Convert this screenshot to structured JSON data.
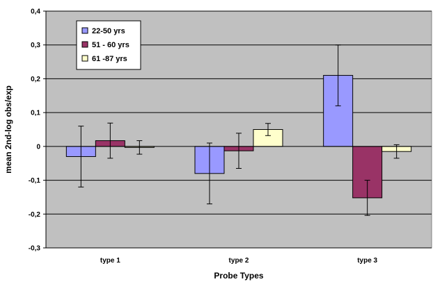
{
  "chart_data": {
    "type": "bar",
    "title": "",
    "xlabel": "Probe Types",
    "ylabel": "mean 2nd-log obs/exp",
    "categories": [
      "type 1",
      "type 2",
      "type 3"
    ],
    "ylim": [
      -0.3,
      0.4
    ],
    "yticks": [
      -0.3,
      -0.2,
      -0.1,
      0,
      0.1,
      0.2,
      0.3,
      0.4
    ],
    "ytick_labels": [
      "-0,3",
      "-0,2",
      "-0,1",
      "0",
      "0,1",
      "0,2",
      "0,3",
      "0,4"
    ],
    "grid": true,
    "legend_position": "top-left",
    "series": [
      {
        "name": "22-50 yrs",
        "color": "#9999ff",
        "values": [
          -0.03,
          -0.08,
          0.21
        ],
        "error": [
          0.09,
          0.09,
          0.09
        ]
      },
      {
        "name": "51 - 60 yrs",
        "color": "#993366",
        "values": [
          0.017,
          -0.013,
          -0.152
        ],
        "error": [
          0.052,
          0.052,
          0.052
        ]
      },
      {
        "name": "61 -87 yrs",
        "color": "#ffffcc",
        "values": [
          -0.003,
          0.05,
          -0.015
        ],
        "error": [
          0.02,
          0.018,
          0.02
        ]
      }
    ],
    "plot_background": "#c0c0c0"
  }
}
